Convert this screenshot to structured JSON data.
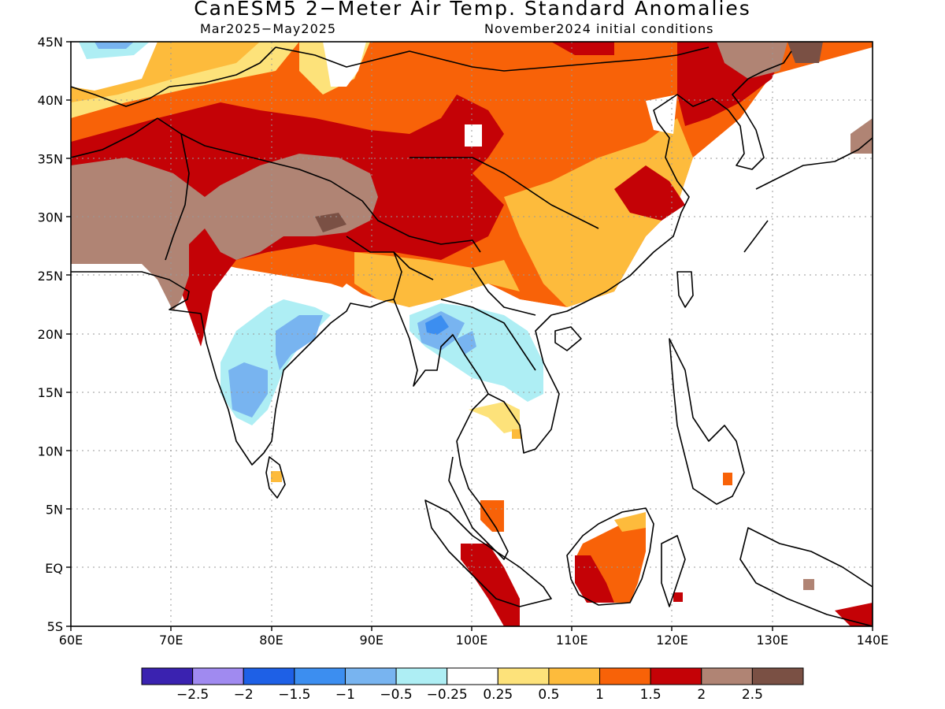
{
  "title": "CanESM5 2−Meter Air Temp. Standard Anomalies",
  "subtitle_left": "Mar2025−May2025",
  "subtitle_right": "November2024 initial conditions",
  "lat_labels": [
    "45N",
    "40N",
    "35N",
    "30N",
    "25N",
    "20N",
    "15N",
    "10N",
    "5N",
    "EQ",
    "5S"
  ],
  "lon_labels": [
    "60E",
    "70E",
    "80E",
    "90E",
    "100E",
    "110E",
    "120E",
    "130E",
    "140E"
  ],
  "colorbar": {
    "colors": [
      "#3a22b0",
      "#a08af0",
      "#1e60e6",
      "#3c8ef0",
      "#78b4f0",
      "#aeeef4",
      "#ffffff",
      "#fde27a",
      "#fdbb3c",
      "#f86208",
      "#c40206",
      "#b08474",
      "#7a5044"
    ],
    "labels": [
      "−2.5",
      "−2",
      "−1.5",
      "−1",
      "−0.5",
      "−0.25",
      "0.25",
      "0.5",
      "1",
      "1.5",
      "2",
      "2.5"
    ]
  },
  "palette": {
    "white": "#ffffff",
    "lt_blue": "#aeeef4",
    "mid_blue": "#78b4f0",
    "blue": "#3c8ef0",
    "lt_yellow": "#fde27a",
    "yellow": "#fdbb3c",
    "orange": "#f86208",
    "red": "#c40206",
    "brown": "#b08474",
    "dk_brown": "#7a5044"
  }
}
